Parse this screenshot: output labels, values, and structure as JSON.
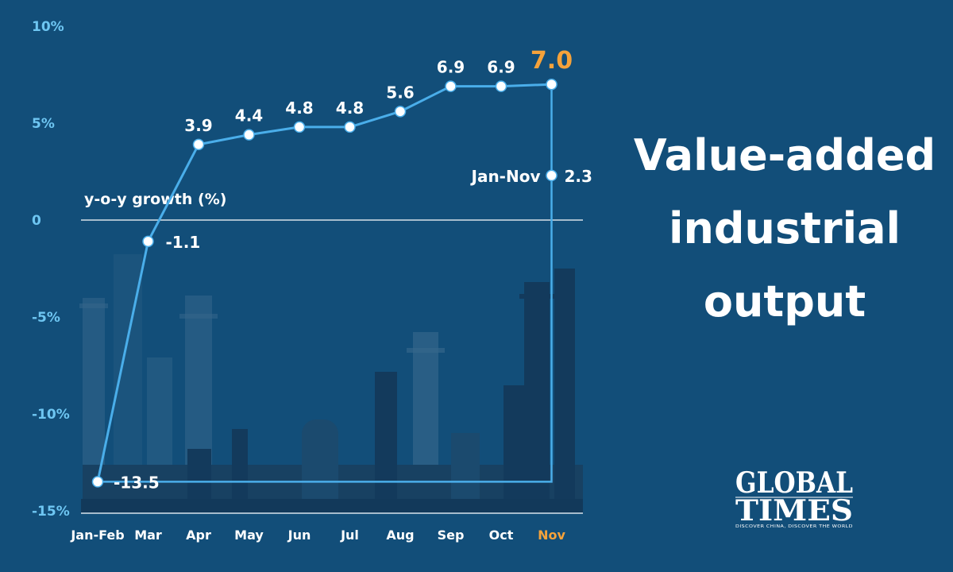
{
  "chart_data": {
    "type": "line",
    "title": "Value-added industrial output",
    "title_lines": [
      "Value-added",
      "industrial",
      "output"
    ],
    "ylabel": "y-o-y growth (%)",
    "ylim": [
      -15,
      10
    ],
    "yticks": [
      {
        "value": 10,
        "label": "10%"
      },
      {
        "value": 5,
        "label": "5%"
      },
      {
        "value": 0,
        "label": "0"
      },
      {
        "value": -5,
        "label": "-5%"
      },
      {
        "value": -10,
        "label": "-10%"
      },
      {
        "value": -15,
        "label": "-15%"
      }
    ],
    "categories": [
      "Jan-Feb",
      "Mar",
      "Apr",
      "May",
      "Jun",
      "Jul",
      "Aug",
      "Sep",
      "Oct",
      "Nov"
    ],
    "series": [
      {
        "name": "y-o-y growth (%)",
        "values": [
          -13.5,
          -1.1,
          3.9,
          4.4,
          4.8,
          4.8,
          5.6,
          6.9,
          6.9,
          7.0
        ]
      }
    ],
    "data_labels": [
      "-13.5",
      "-1.1",
      "3.9",
      "4.4",
      "4.8",
      "4.8",
      "5.6",
      "6.9",
      "6.9",
      "7.0"
    ],
    "highlight_category": "Nov",
    "annotation": {
      "label": "Jan-Nov",
      "value": 2.3,
      "value_label": "2.3"
    },
    "colors": {
      "line": "#4aaeea",
      "highlight": "#f5a23a",
      "axis_tick": "#6ec6f2",
      "background": "#124e79"
    }
  },
  "logo": {
    "line1": "GLOBAL",
    "line2": "TIMES",
    "tagline": "DISCOVER CHINA, DISCOVER THE WORLD"
  }
}
